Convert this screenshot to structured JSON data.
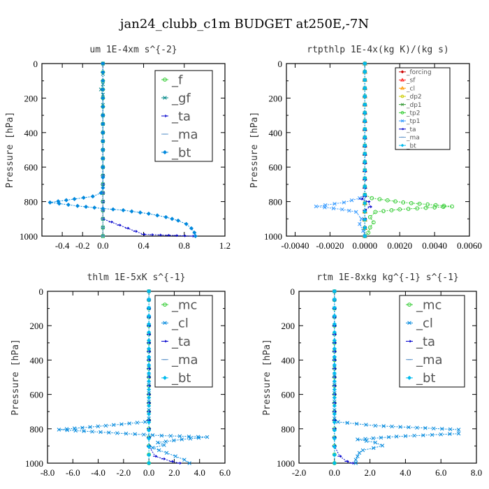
{
  "figure": {
    "title": "jan24_clubb_c1m  BUDGET at250E,-7N"
  },
  "chart_data": [
    {
      "type": "line",
      "title": "um  1E-4xm s^{-2}",
      "xlabel": "",
      "ylabel": "Pressure [hPa]",
      "xlim": [
        -0.6,
        1.2
      ],
      "ylim": [
        1000,
        0
      ],
      "xticks": [
        "-0.4",
        "-0.2",
        "0.0",
        "0.4",
        "0.8",
        "1.2"
      ],
      "xtick_values": [
        -0.4,
        -0.2,
        0.0,
        0.4,
        0.8,
        1.2
      ],
      "yticks": [
        "0",
        "200",
        "400",
        "600",
        "800",
        "1000"
      ],
      "ytick_values": [
        0,
        200,
        400,
        600,
        800,
        1000
      ],
      "legend_position": "top-right",
      "legend_size": "large",
      "series": [
        {
          "name": "_f",
          "color": "#33cc33",
          "marker": "circle",
          "points": [
            [
              0,
              0
            ],
            [
              0,
              100
            ],
            [
              0,
              200
            ],
            [
              0,
              300
            ],
            [
              0,
              400
            ],
            [
              0,
              500
            ],
            [
              0,
              600
            ],
            [
              0,
              700
            ],
            [
              0,
              800
            ],
            [
              0,
              900
            ],
            [
              0,
              1000
            ]
          ]
        },
        {
          "name": "_gf",
          "color": "#008888",
          "marker": "x",
          "points": [
            [
              0,
              0
            ],
            [
              0,
              120
            ],
            [
              -0.02,
              150
            ],
            [
              0,
              180
            ],
            [
              0,
              300
            ],
            [
              0,
              500
            ],
            [
              0,
              700
            ],
            [
              0,
              800
            ],
            [
              0,
              1000
            ]
          ]
        },
        {
          "name": "_ta",
          "color": "#0000cc",
          "marker": "arrow",
          "points": [
            [
              0,
              0
            ],
            [
              0,
              500
            ],
            [
              0,
              900
            ],
            [
              0.4,
              990
            ],
            [
              0.88,
              1000
            ]
          ]
        },
        {
          "name": "_ma",
          "color": "#6699cc",
          "marker": "dash",
          "points": [
            [
              0,
              0
            ],
            [
              0,
              500
            ],
            [
              0,
              1000
            ]
          ]
        },
        {
          "name": "_bt",
          "color": "#0088dd",
          "marker": "diamond",
          "points": [
            [
              0,
              0
            ],
            [
              0,
              200
            ],
            [
              0,
              400
            ],
            [
              0,
              600
            ],
            [
              0,
              720
            ],
            [
              -0.02,
              750
            ],
            [
              -0.1,
              770
            ],
            [
              -0.28,
              785
            ],
            [
              -0.52,
              805
            ],
            [
              -0.25,
              825
            ],
            [
              0,
              840
            ],
            [
              0.2,
              850
            ],
            [
              0.45,
              870
            ],
            [
              0.62,
              890
            ],
            [
              0.74,
              910
            ],
            [
              0.82,
              930
            ],
            [
              0.87,
              955
            ],
            [
              0.9,
              980
            ],
            [
              0.91,
              1000
            ]
          ]
        }
      ]
    },
    {
      "type": "line",
      "title": "rtpthlp  1E-4x(kg K)/(kg s)",
      "xlabel": "",
      "ylabel": "Pressure [hPa]",
      "xlim": [
        -0.0045,
        0.006
      ],
      "ylim": [
        1000,
        0
      ],
      "xticks": [
        "-0.0040",
        "-0.0020",
        "0.0000",
        "0.0020",
        "0.0040",
        "0.0060"
      ],
      "xtick_values": [
        -0.004,
        -0.002,
        0.0,
        0.002,
        0.004,
        0.006
      ],
      "yticks": [
        "0",
        "200",
        "400",
        "600",
        "800",
        "1000"
      ],
      "ytick_values": [
        0,
        200,
        400,
        600,
        800,
        1000
      ],
      "legend_position": "top-right",
      "legend_size": "small",
      "series": [
        {
          "name": "_forcing",
          "color": "#cc0000",
          "marker": "diamond",
          "points": [
            [
              0,
              0
            ],
            [
              0,
              1000
            ]
          ]
        },
        {
          "name": "_sf",
          "color": "#ff2222",
          "marker": "triangle",
          "points": [
            [
              0,
              0
            ],
            [
              0,
              1000
            ]
          ]
        },
        {
          "name": "_cl",
          "color": "#ff9900",
          "marker": "triangle",
          "points": [
            [
              0,
              0
            ],
            [
              0,
              1000
            ]
          ]
        },
        {
          "name": "_dp2",
          "color": "#cccc00",
          "marker": "circle",
          "points": [
            [
              0,
              0
            ],
            [
              0,
              1000
            ]
          ]
        },
        {
          "name": "_dp1",
          "color": "#339933",
          "marker": "x",
          "points": [
            [
              0,
              0
            ],
            [
              0,
              1000
            ]
          ]
        },
        {
          "name": "_tp2",
          "color": "#33cc33",
          "marker": "circle",
          "points": [
            [
              0,
              0
            ],
            [
              0,
              760
            ],
            [
              0.0004,
              780
            ],
            [
              0.0022,
              805
            ],
            [
              0.005,
              828
            ],
            [
              0.002,
              845
            ],
            [
              0.0006,
              860
            ],
            [
              0.0003,
              890
            ],
            [
              0.0005,
              920
            ],
            [
              0.0003,
              950
            ],
            [
              0.0002,
              980
            ],
            [
              0,
              1000
            ]
          ]
        },
        {
          "name": "_tp1",
          "color": "#3399ff",
          "marker": "x",
          "points": [
            [
              0,
              0
            ],
            [
              0,
              760
            ],
            [
              -0.0003,
              780
            ],
            [
              -0.0012,
              805
            ],
            [
              -0.0028,
              828
            ],
            [
              -0.0013,
              845
            ],
            [
              -0.0005,
              860
            ],
            [
              -0.0002,
              900
            ],
            [
              -0.0003,
              930
            ],
            [
              -0.0001,
              970
            ],
            [
              0,
              1000
            ]
          ]
        },
        {
          "name": "_ta",
          "color": "#0000cc",
          "marker": "arrow",
          "points": [
            [
              0,
              0
            ],
            [
              0,
              770
            ],
            [
              -0.0002,
              785
            ],
            [
              0.0002,
              800
            ],
            [
              0.0003,
              830
            ],
            [
              0,
              850
            ],
            [
              0,
              1000
            ]
          ]
        },
        {
          "name": "_ma",
          "color": "#6699cc",
          "marker": "dash",
          "points": [
            [
              0,
              0
            ],
            [
              0,
              1000
            ]
          ]
        },
        {
          "name": "_bt",
          "color": "#00bbee",
          "marker": "diamond",
          "points": [
            [
              0,
              0
            ],
            [
              0,
              1000
            ]
          ]
        }
      ]
    },
    {
      "type": "line",
      "title": "thlm  1E-5xK s^{-1}",
      "xlabel": "",
      "ylabel": "Pressure [hPa]",
      "xlim": [
        -8,
        6
      ],
      "ylim": [
        1000,
        0
      ],
      "xticks": [
        "-8.0",
        "-6.0",
        "-4.0",
        "-2.0",
        "0.0",
        "2.0",
        "4.0",
        "6.0"
      ],
      "xtick_values": [
        -8,
        -6,
        -4,
        -2,
        0,
        2,
        4,
        6
      ],
      "yticks": [
        "0",
        "200",
        "400",
        "600",
        "800",
        "1000"
      ],
      "ytick_values": [
        0,
        200,
        400,
        600,
        800,
        1000
      ],
      "legend_position": "top-right",
      "legend_size": "large",
      "series": [
        {
          "name": "_mc",
          "color": "#33cc33",
          "marker": "circle",
          "points": [
            [
              0,
              0
            ],
            [
              0,
              100
            ],
            [
              0,
              200
            ],
            [
              0,
              300
            ],
            [
              0,
              400
            ],
            [
              0,
              500
            ],
            [
              0,
              600
            ],
            [
              0,
              700
            ],
            [
              0,
              800
            ],
            [
              0,
              900
            ],
            [
              0,
              1000
            ]
          ]
        },
        {
          "name": "_cl",
          "color": "#0088dd",
          "marker": "x",
          "points": [
            [
              0,
              0
            ],
            [
              0,
              740
            ],
            [
              -0.3,
              760
            ],
            [
              -3.4,
              782
            ],
            [
              -7.1,
              805
            ],
            [
              -2.5,
              825
            ],
            [
              1,
              840
            ],
            [
              4.6,
              848
            ],
            [
              2.6,
              862
            ],
            [
              0.7,
              880
            ],
            [
              1.2,
              895
            ],
            [
              0.3,
              910
            ],
            [
              0.8,
              925
            ],
            [
              1.4,
              940
            ],
            [
              2.1,
              960
            ],
            [
              2.8,
              980
            ],
            [
              3.2,
              1000
            ]
          ]
        },
        {
          "name": "_ta",
          "color": "#0000cc",
          "marker": "arrow",
          "points": [
            [
              0,
              0
            ],
            [
              0,
              900
            ],
            [
              0.5,
              960
            ],
            [
              1.8,
              990
            ],
            [
              2.4,
              1000
            ]
          ]
        },
        {
          "name": "_ma",
          "color": "#6699cc",
          "marker": "dash",
          "points": [
            [
              0,
              0
            ],
            [
              0,
              1000
            ]
          ]
        },
        {
          "name": "_bt",
          "color": "#00bbee",
          "marker": "diamond",
          "points": [
            [
              0,
              0
            ],
            [
              0,
              1000
            ]
          ]
        }
      ]
    },
    {
      "type": "line",
      "title": "rtm  1E-8xkg kg^{-1} s^{-1}",
      "xlabel": "",
      "ylabel": "Pressure [hPa]",
      "xlim": [
        -2,
        8
      ],
      "ylim": [
        1000,
        0
      ],
      "xticks": [
        "-2.0",
        "0.0",
        "2.0",
        "4.0",
        "6.0",
        "8.0"
      ],
      "xtick_values": [
        -2,
        0,
        2,
        4,
        6,
        8
      ],
      "yticks": [
        "0",
        "200",
        "400",
        "600",
        "800",
        "1000"
      ],
      "ytick_values": [
        0,
        200,
        400,
        600,
        800,
        1000
      ],
      "legend_position": "top-right",
      "legend_size": "large",
      "series": [
        {
          "name": "_mc",
          "color": "#33cc33",
          "marker": "circle",
          "points": [
            [
              0,
              0
            ],
            [
              0,
              100
            ],
            [
              0,
              200
            ],
            [
              0,
              300
            ],
            [
              0,
              400
            ],
            [
              0,
              500
            ],
            [
              0,
              600
            ],
            [
              0,
              700
            ],
            [
              0,
              800
            ],
            [
              0,
              900
            ],
            [
              0,
              1000
            ]
          ]
        },
        {
          "name": "_cl",
          "color": "#0088dd",
          "marker": "x",
          "points": [
            [
              0,
              0
            ],
            [
              0,
              740
            ],
            [
              0.2,
              760
            ],
            [
              2.3,
              782
            ],
            [
              7,
              805
            ],
            [
              7,
              828
            ],
            [
              3.5,
              845
            ],
            [
              1.3,
              862
            ],
            [
              2.3,
              880
            ],
            [
              2.7,
              898
            ],
            [
              2.2,
              912
            ],
            [
              1.6,
              925
            ],
            [
              1.4,
              940
            ],
            [
              1.3,
              960
            ],
            [
              1.2,
              980
            ],
            [
              1.2,
              1000
            ]
          ]
        },
        {
          "name": "_ta",
          "color": "#0000cc",
          "marker": "arrow",
          "points": [
            [
              0,
              0
            ],
            [
              0,
              900
            ],
            [
              0.3,
              960
            ],
            [
              0.7,
              990
            ],
            [
              1,
              1000
            ]
          ]
        },
        {
          "name": "_ma",
          "color": "#6699cc",
          "marker": "dash",
          "points": [
            [
              0,
              0
            ],
            [
              0,
              1000
            ]
          ]
        },
        {
          "name": "_bt",
          "color": "#00bbee",
          "marker": "diamond",
          "points": [
            [
              0,
              0
            ],
            [
              0,
              1000
            ]
          ]
        }
      ]
    }
  ]
}
